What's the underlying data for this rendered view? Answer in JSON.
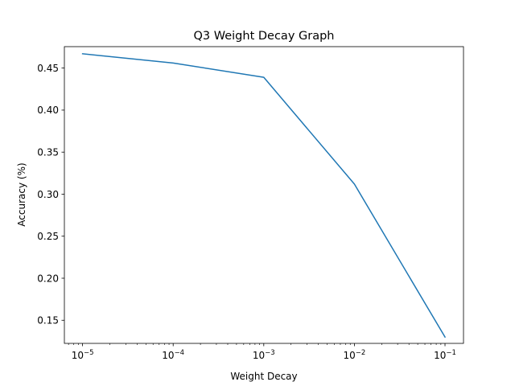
{
  "chart_data": {
    "type": "line",
    "title": "Q3 Weight Decay Graph",
    "xlabel": "Weight Decay",
    "ylabel": "Accuracy (%)",
    "xscale": "log",
    "xlim": [
      6.3e-06,
      0.16
    ],
    "ylim": [
      0.1225,
      0.4755
    ],
    "x_ticks": [
      1e-05,
      0.0001,
      0.001,
      0.01,
      0.1
    ],
    "x_tick_labels": [
      {
        "base": "10",
        "exp": "−5"
      },
      {
        "base": "10",
        "exp": "−4"
      },
      {
        "base": "10",
        "exp": "−3"
      },
      {
        "base": "10",
        "exp": "−2"
      },
      {
        "base": "10",
        "exp": "−1"
      }
    ],
    "y_ticks": [
      0.15,
      0.2,
      0.25,
      0.3,
      0.35,
      0.4,
      0.45
    ],
    "y_tick_labels": [
      "0.15",
      "0.20",
      "0.25",
      "0.30",
      "0.35",
      "0.40",
      "0.45"
    ],
    "grid": false,
    "series": [
      {
        "color": "#1f77b4",
        "x": [
          1e-05,
          0.0001,
          0.001,
          0.01,
          0.1
        ],
        "y": [
          0.467,
          0.456,
          0.439,
          0.312,
          0.13
        ]
      }
    ]
  }
}
